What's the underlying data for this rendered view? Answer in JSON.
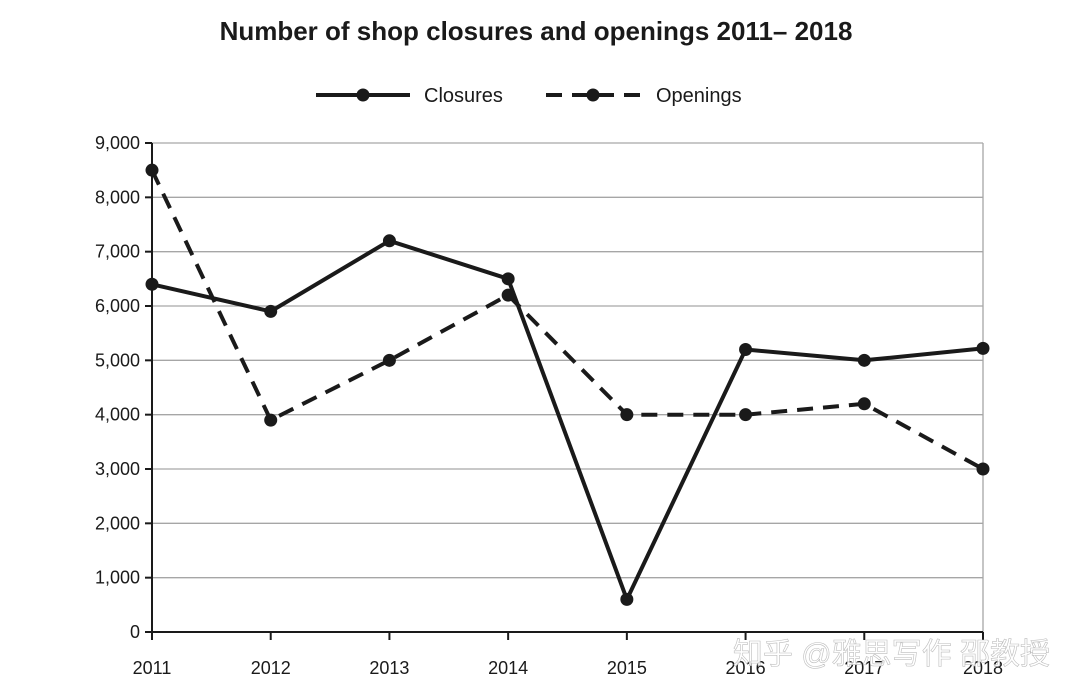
{
  "chart_data": {
    "type": "line",
    "title": "Number of shop closures and openings 2011– 2018",
    "xlabel": "",
    "ylabel": "",
    "categories": [
      "2011",
      "2012",
      "2013",
      "2014",
      "2015",
      "2016",
      "2017",
      "2018"
    ],
    "series": [
      {
        "name": "Closures",
        "line_style": "solid",
        "color": "#1a1a1a",
        "values": [
          6400,
          5900,
          7200,
          6500,
          600,
          5200,
          5000,
          5220
        ]
      },
      {
        "name": "Openings",
        "line_style": "dashed",
        "color": "#1a1a1a",
        "values": [
          8500,
          3900,
          5000,
          6200,
          4000,
          4000,
          4200,
          3000
        ]
      }
    ],
    "ylim": [
      0,
      9000
    ],
    "y_ticks": [
      "0",
      "1,000",
      "2,000",
      "3,000",
      "4,000",
      "5,000",
      "6,000",
      "7,000",
      "8,000",
      "9,000"
    ],
    "grid": "horizontal",
    "legend_position": "top-center"
  },
  "watermark": "知乎 @雅思写作 邵教授"
}
